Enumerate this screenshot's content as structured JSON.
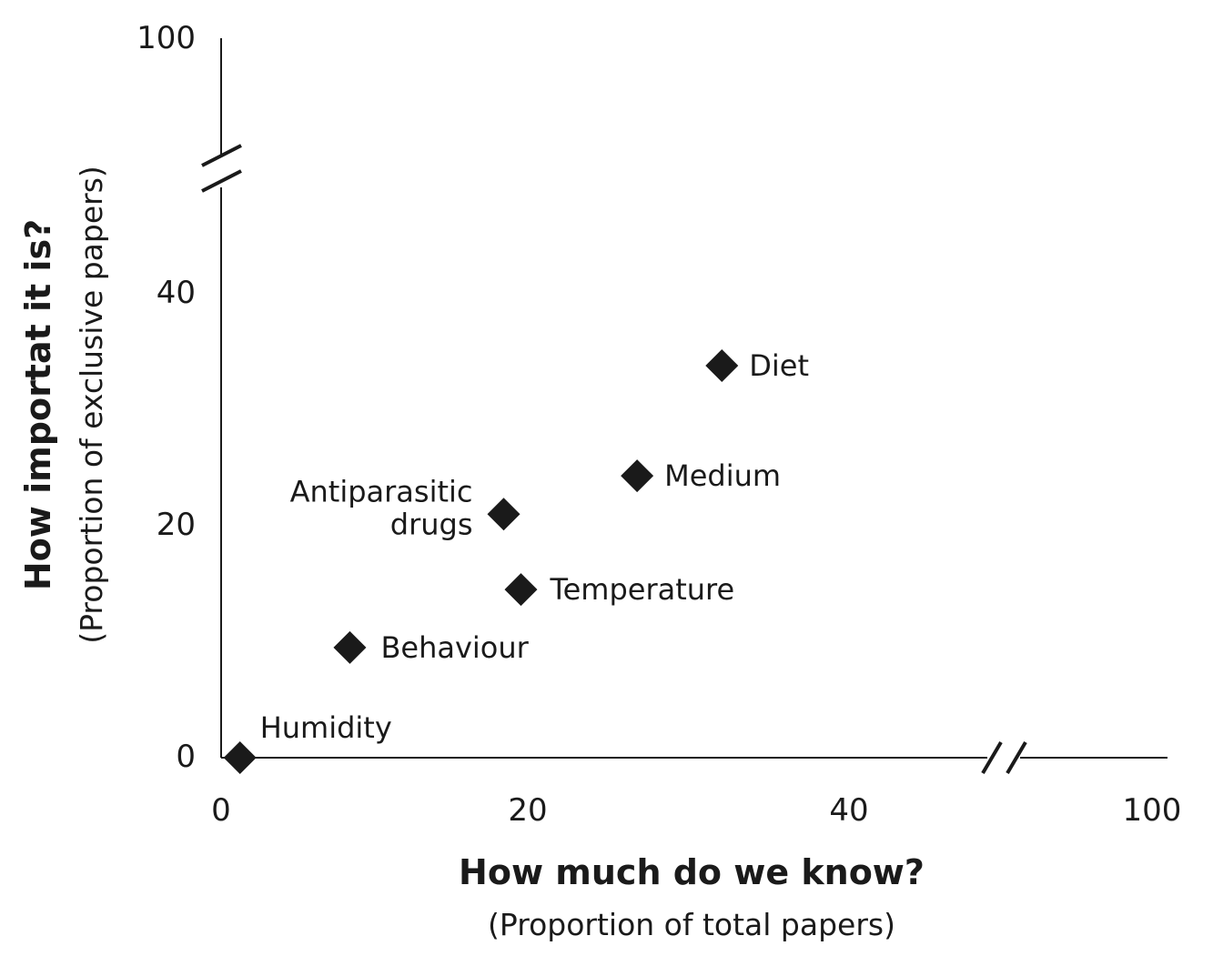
{
  "chart_data": {
    "type": "scatter",
    "x_axis": {
      "title": "How much do we know?",
      "subtitle": "(Proportion of total papers)",
      "ticks": [
        0,
        20,
        40,
        100
      ],
      "tick_labels": [
        "0",
        "20",
        "40",
        "100"
      ],
      "break": true
    },
    "y_axis": {
      "title": "How importat it is?",
      "subtitle": "(Proportion of exclusive papers)",
      "ticks": [
        0,
        20,
        40,
        100
      ],
      "tick_labels": [
        "0",
        "20",
        "40",
        "100"
      ],
      "break": true
    },
    "points": [
      {
        "label": "Humidity",
        "x": 1.2,
        "y": 0
      },
      {
        "label": "Behaviour",
        "x": 8.2,
        "y": 9.5
      },
      {
        "label": "Temperature",
        "x": 19.1,
        "y": 14.5
      },
      {
        "label": "Antiparasitic drugs",
        "x": 18.0,
        "y": 21.0
      },
      {
        "label": "Medium",
        "x": 26.5,
        "y": 24.3
      },
      {
        "label": "Diet",
        "x": 31.9,
        "y": 33.8
      }
    ],
    "marker": "diamond",
    "marker_color": "#1a1a1a",
    "grid": false,
    "legend": "none"
  }
}
